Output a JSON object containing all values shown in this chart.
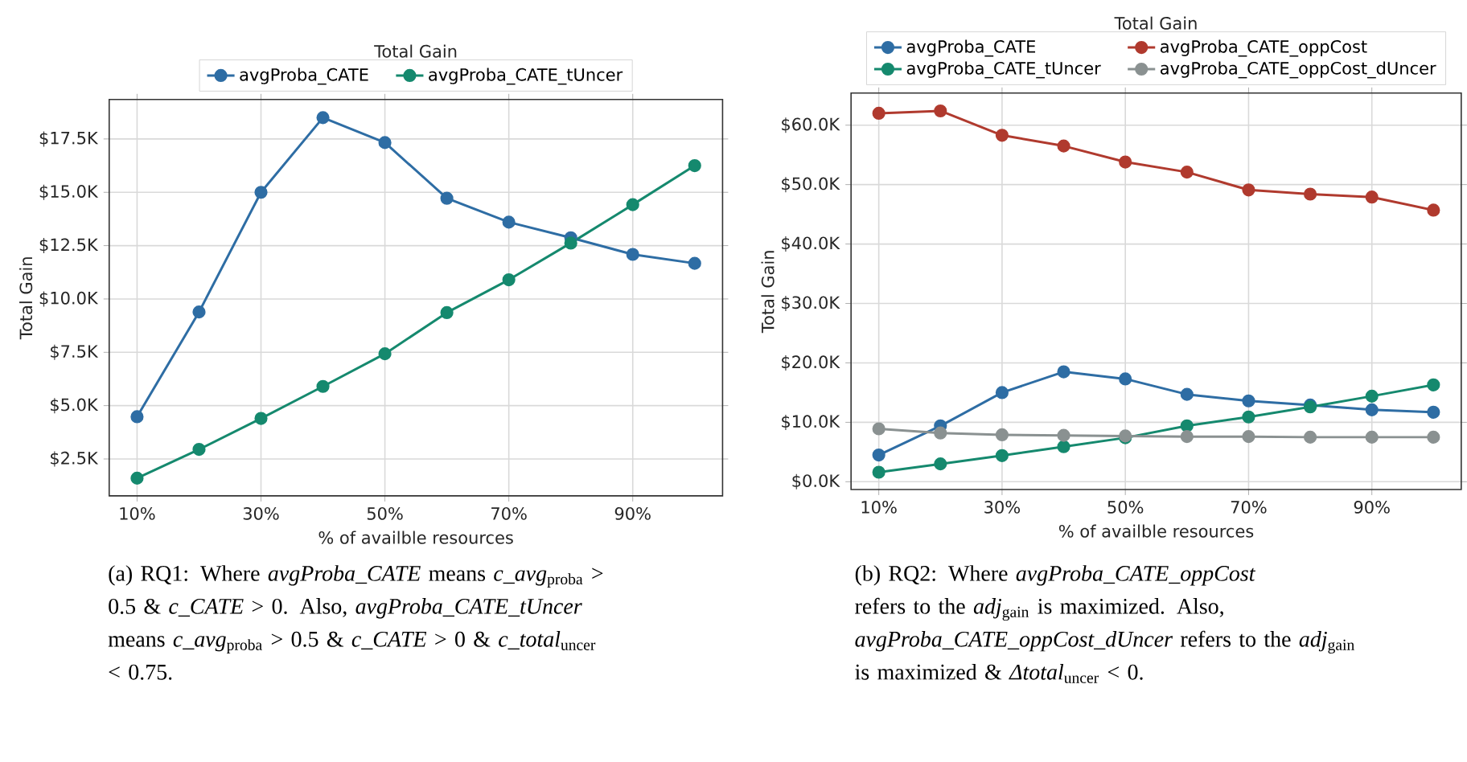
{
  "chart_data": [
    {
      "type": "line",
      "xlabel": "% of availble resources",
      "ylabel": "Total Gain",
      "legend_title": "Total Gain",
      "legend": "top",
      "grid": true,
      "marker": "circle",
      "x": [
        10,
        20,
        30,
        40,
        50,
        60,
        70,
        80,
        90,
        100
      ],
      "series": [
        {
          "name": "avgProba_CATE",
          "color": "#2e6da4",
          "values": [
            4480,
            9390,
            15000,
            18500,
            17330,
            14720,
            13600,
            12870,
            12090,
            11670
          ]
        },
        {
          "name": "avgProba_CATE_tUncer",
          "color": "#15896e",
          "values": [
            1600,
            2950,
            4400,
            5900,
            7430,
            9360,
            10900,
            12620,
            14420,
            16250
          ]
        }
      ],
      "xlim": [
        5.5,
        104.5
      ],
      "ylim": [
        770,
        19350
      ],
      "xticks": [
        {
          "value": 10,
          "label": "10%"
        },
        {
          "value": 30,
          "label": "30%"
        },
        {
          "value": 50,
          "label": "50%"
        },
        {
          "value": 70,
          "label": "70%"
        },
        {
          "value": 90,
          "label": "90%"
        }
      ],
      "yticks": [
        {
          "value": 2500,
          "label": "$2.5K"
        },
        {
          "value": 5000,
          "label": "$5.0K"
        },
        {
          "value": 7500,
          "label": "$7.5K"
        },
        {
          "value": 10000,
          "label": "$10.0K"
        },
        {
          "value": 12500,
          "label": "$12.5K"
        },
        {
          "value": 15000,
          "label": "$15.0K"
        },
        {
          "value": 17500,
          "label": "$17.5K"
        }
      ],
      "annotations": [
        "(a) RQ1: Where *avgProba_CATE* means *c_avg*$_{proba}$ > 0.5 & *c_CATE* > 0. Also, *avgProba_CATE_tUncer* means *c_avg*$_{proba}$ > 0.5 & *c_CATE* > 0 & *c_total*$_{uncer}$ < 0.75."
      ]
    },
    {
      "type": "line",
      "xlabel": "% of availble resources",
      "ylabel": "Total Gain",
      "legend_title": "Total Gain",
      "legend": "top",
      "grid": true,
      "marker": "circle",
      "x": [
        10,
        20,
        30,
        40,
        50,
        60,
        70,
        80,
        90,
        100
      ],
      "series": [
        {
          "name": "avgProba_CATE",
          "color": "#2e6da4",
          "values": [
            4500,
            9400,
            15000,
            18500,
            17300,
            14700,
            13600,
            12900,
            12100,
            11700
          ]
        },
        {
          "name": "avgProba_CATE_tUncer",
          "color": "#15896e",
          "values": [
            1600,
            3000,
            4400,
            5900,
            7400,
            9400,
            10900,
            12600,
            14400,
            16300
          ]
        },
        {
          "name": "avgProba_CATE_oppCost",
          "color": "#b03a2e",
          "values": [
            62000,
            62400,
            58300,
            56500,
            53800,
            52100,
            49100,
            48400,
            47900,
            45700
          ]
        },
        {
          "name": "avgProba_CATE_oppCost_dUncer",
          "color": "#8a9191",
          "values": [
            8900,
            8200,
            7900,
            7800,
            7700,
            7600,
            7600,
            7500,
            7500,
            7500
          ]
        }
      ],
      "xlim": [
        5.5,
        104.5
      ],
      "ylim": [
        -1300,
        65400
      ],
      "xticks": [
        {
          "value": 10,
          "label": "10%"
        },
        {
          "value": 30,
          "label": "30%"
        },
        {
          "value": 50,
          "label": "50%"
        },
        {
          "value": 70,
          "label": "70%"
        },
        {
          "value": 90,
          "label": "90%"
        }
      ],
      "yticks": [
        {
          "value": 0,
          "label": "$0.0K"
        },
        {
          "value": 10000,
          "label": "$10.0K"
        },
        {
          "value": 20000,
          "label": "$20.0K"
        },
        {
          "value": 30000,
          "label": "$30.0K"
        },
        {
          "value": 40000,
          "label": "$40.0K"
        },
        {
          "value": 50000,
          "label": "$50.0K"
        },
        {
          "value": 60000,
          "label": "$60.0K"
        }
      ],
      "annotations": [
        "(b) RQ2: Where *avgProba_CATE_oppCost* refers to the *adj*$_{gain}$ is maximized. Also, *avgProba_CATE_oppCost_dUncer* refers to the *adj*$_{gain}$ is maximized & *Δtotal*$_{uncer}$ < 0."
      ]
    }
  ]
}
